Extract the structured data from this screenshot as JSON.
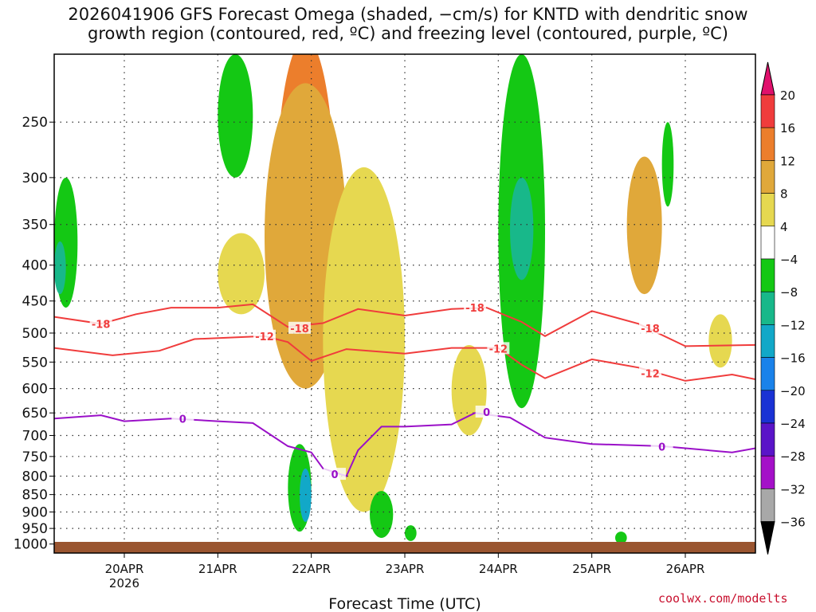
{
  "title_line1": "2026041906 GFS Forecast Omega (shaded, −cm/s) for KNTD with dendritic snow",
  "title_line2": "growth region (contoured, red, ºC) and freezing level (contoured, purple, ºC)",
  "credit": "coolwx.com/modelts",
  "colors": {
    "ground": "#9a5530",
    "isotherm_red": "#f03c3c",
    "freezing_purple": "#9a10c8",
    "grid": "#333333"
  },
  "chart_data": {
    "type": "heatmap",
    "xlabel": "Forecast Time (UTC)",
    "ylabel": "",
    "x_start": "2026-04-19T06Z",
    "x_end": "2026-04-26T18Z",
    "x_ticks": [
      {
        "date": "2026-04-20T00Z",
        "label": "20APR",
        "sublabel": "2026"
      },
      {
        "date": "2026-04-21T00Z",
        "label": "21APR",
        "sublabel": ""
      },
      {
        "date": "2026-04-22T00Z",
        "label": "22APR",
        "sublabel": ""
      },
      {
        "date": "2026-04-23T00Z",
        "label": "23APR",
        "sublabel": ""
      },
      {
        "date": "2026-04-24T00Z",
        "label": "24APR",
        "sublabel": ""
      },
      {
        "date": "2026-04-25T00Z",
        "label": "25APR",
        "sublabel": ""
      },
      {
        "date": "2026-04-26T00Z",
        "label": "26APR",
        "sublabel": ""
      }
    ],
    "y_axis": {
      "scale": "log-pressure",
      "reversed": true,
      "range_hpa": [
        1030,
        200
      ],
      "ticks": [
        250,
        300,
        350,
        400,
        450,
        500,
        550,
        600,
        650,
        700,
        750,
        800,
        850,
        900,
        950,
        1000
      ]
    },
    "grid": true,
    "colorbar": {
      "position": "right",
      "labels": [
        "20",
        "16",
        "12",
        "8",
        "4",
        "−4",
        "−8",
        "−12",
        "−16",
        "−20",
        "−24",
        "−28",
        "−32",
        "−36"
      ],
      "bins": [
        {
          "range": "above 20",
          "color": "#e0106c"
        },
        {
          "range": "16 to 20",
          "color": "#f03c3c"
        },
        {
          "range": "12 to 16",
          "color": "#ec7e2c"
        },
        {
          "range": "8 to 12",
          "color": "#e0a83a"
        },
        {
          "range": "4 to 8",
          "color": "#e6d850"
        },
        {
          "range": "−4 to 4",
          "color": "#ffffff"
        },
        {
          "range": "−8 to −4",
          "color": "#14c814"
        },
        {
          "range": "−12 to −8",
          "color": "#18b88a"
        },
        {
          "range": "−16 to −12",
          "color": "#12a8c8"
        },
        {
          "range": "−20 to −16",
          "color": "#1a82ea"
        },
        {
          "range": "−24 to −20",
          "color": "#1a32d4"
        },
        {
          "range": "−28 to −24",
          "color": "#5a14c8"
        },
        {
          "range": "−32 to −28",
          "color": "#a410c8"
        },
        {
          "range": "−36 to −32",
          "color": "#a8a8a8"
        },
        {
          "range": "below −36",
          "color": "#000000"
        }
      ]
    },
    "series": [
      {
        "name": "-18",
        "points": [
          [
            "2026-04-19T06Z",
            474
          ],
          [
            "2026-04-19T18Z",
            485
          ],
          [
            "2026-04-20T03Z",
            470
          ],
          [
            "2026-04-20T12Z",
            460
          ],
          [
            "2026-04-21T00Z",
            460
          ],
          [
            "2026-04-21T09Z",
            455
          ],
          [
            "2026-04-21T18Z",
            490
          ],
          [
            "2026-04-22T03Z",
            484
          ],
          [
            "2026-04-22T12Z",
            462
          ],
          [
            "2026-04-23T00Z",
            472
          ],
          [
            "2026-04-23T12Z",
            462
          ],
          [
            "2026-04-23T21Z",
            460
          ],
          [
            "2026-04-24T06Z",
            482
          ],
          [
            "2026-04-24T12Z",
            505
          ],
          [
            "2026-04-25T00Z",
            465
          ],
          [
            "2026-04-25T12Z",
            485
          ],
          [
            "2026-04-26T00Z",
            522
          ],
          [
            "2026-04-26T18Z",
            520
          ]
        ],
        "label_at": [
          [
            "2026-04-19T18Z",
            485
          ],
          [
            "2026-04-21T21Z",
            492
          ],
          [
            "2026-04-23T18Z",
            460
          ],
          [
            "2026-04-25T15Z",
            492
          ]
        ]
      },
      {
        "name": "-12",
        "points": [
          [
            "2026-04-19T06Z",
            525
          ],
          [
            "2026-04-19T21Z",
            538
          ],
          [
            "2026-04-20T09Z",
            530
          ],
          [
            "2026-04-20T18Z",
            510
          ],
          [
            "2026-04-21T12Z",
            505
          ],
          [
            "2026-04-21T18Z",
            515
          ],
          [
            "2026-04-22T00Z",
            548
          ],
          [
            "2026-04-22T09Z",
            527
          ],
          [
            "2026-04-23T00Z",
            535
          ],
          [
            "2026-04-23T12Z",
            525
          ],
          [
            "2026-04-24T00Z",
            525
          ],
          [
            "2026-04-24T06Z",
            555
          ],
          [
            "2026-04-24T12Z",
            580
          ],
          [
            "2026-04-25T00Z",
            545
          ],
          [
            "2026-04-25T12Z",
            560
          ],
          [
            "2026-04-26T00Z",
            585
          ],
          [
            "2026-04-26T12Z",
            573
          ],
          [
            "2026-04-26T18Z",
            582
          ]
        ],
        "label_at": [
          [
            "2026-04-21T12Z",
            505
          ],
          [
            "2026-04-24T00Z",
            526
          ],
          [
            "2026-04-25T15Z",
            571
          ]
        ]
      },
      {
        "name": "0",
        "points": [
          [
            "2026-04-19T06Z",
            662
          ],
          [
            "2026-04-19T18Z",
            655
          ],
          [
            "2026-04-20T00Z",
            668
          ],
          [
            "2026-04-20T12Z",
            662
          ],
          [
            "2026-04-21T00Z",
            668
          ],
          [
            "2026-04-21T09Z",
            672
          ],
          [
            "2026-04-21T18Z",
            725
          ],
          [
            "2026-04-22T00Z",
            740
          ],
          [
            "2026-04-22T03Z",
            780
          ],
          [
            "2026-04-22T09Z",
            800
          ],
          [
            "2026-04-22T12Z",
            735
          ],
          [
            "2026-04-22T18Z",
            680
          ],
          [
            "2026-04-23T00Z",
            680
          ],
          [
            "2026-04-23T12Z",
            675
          ],
          [
            "2026-04-23T18Z",
            650
          ],
          [
            "2026-04-24T03Z",
            660
          ],
          [
            "2026-04-24T12Z",
            705
          ],
          [
            "2026-04-25T00Z",
            720
          ],
          [
            "2026-04-25T18Z",
            725
          ],
          [
            "2026-04-26T12Z",
            740
          ],
          [
            "2026-04-26T18Z",
            730
          ]
        ],
        "label_at": [
          [
            "2026-04-20T15Z",
            663
          ],
          [
            "2026-04-22T06Z",
            795
          ],
          [
            "2026-04-23T21Z",
            648
          ],
          [
            "2026-04-25T18Z",
            726
          ]
        ]
      }
    ],
    "omega_features": [
      {
        "t": [
          "2026-04-21T21Z",
          "2026-04-22T00Z"
        ],
        "p": [
          280,
          460
        ],
        "color": "#e0106c"
      },
      {
        "t": [
          "2026-04-21T18Z",
          "2026-04-22T03Z"
        ],
        "p": [
          240,
          520
        ],
        "color": "#f03c3c"
      },
      {
        "t": [
          "2026-04-21T15Z",
          "2026-04-22T06Z"
        ],
        "p": [
          190,
          560
        ],
        "color": "#ec7e2c"
      },
      {
        "t": [
          "2026-04-21T12Z",
          "2026-04-22T09Z"
        ],
        "p": [
          220,
          600
        ],
        "color": "#e0a83a"
      },
      {
        "t": [
          "2026-04-22T09Z",
          "2026-04-22T18Z"
        ],
        "p": [
          380,
          720
        ],
        "color": "#ec7e2c"
      },
      {
        "t": [
          "2026-04-22T06Z",
          "2026-04-22T21Z"
        ],
        "p": [
          330,
          760
        ],
        "color": "#e0a83a"
      },
      {
        "t": [
          "2026-04-22T03Z",
          "2026-04-23T00Z"
        ],
        "p": [
          290,
          900
        ],
        "color": "#e6d850"
      },
      {
        "t": [
          "2026-04-25T12Z",
          "2026-04-25T15Z"
        ],
        "p": [
          300,
          410
        ],
        "color": "#ec7e2c"
      },
      {
        "t": [
          "2026-04-25T09Z",
          "2026-04-25T18Z"
        ],
        "p": [
          280,
          440
        ],
        "color": "#e0a83a"
      },
      {
        "t": [
          "2026-04-21T00Z",
          "2026-04-21T12Z"
        ],
        "p": [
          360,
          470
        ],
        "color": "#e6d850"
      },
      {
        "t": [
          "2026-04-23T12Z",
          "2026-04-23T21Z"
        ],
        "p": [
          520,
          700
        ],
        "color": "#e6d850"
      },
      {
        "t": [
          "2026-04-26T06Z",
          "2026-04-26T12Z"
        ],
        "p": [
          470,
          560
        ],
        "color": "#e6d850"
      },
      {
        "t": [
          "2026-04-21T18Z",
          "2026-04-22T00Z"
        ],
        "p": [
          720,
          960
        ],
        "color": "#14c814"
      },
      {
        "t": [
          "2026-04-21T21Z",
          "2026-04-22T00Z"
        ],
        "p": [
          780,
          930
        ],
        "color": "#12a8c8"
      },
      {
        "t": [
          "2026-04-19T06Z",
          "2026-04-19T12Z"
        ],
        "p": [
          300,
          460
        ],
        "color": "#14c814"
      },
      {
        "t": [
          "2026-04-19T06Z",
          "2026-04-19T09Z"
        ],
        "p": [
          370,
          440
        ],
        "color": "#18b88a"
      },
      {
        "t": [
          "2026-04-24T00Z",
          "2026-04-24T12Z"
        ],
        "p": [
          200,
          640
        ],
        "color": "#14c814"
      },
      {
        "t": [
          "2026-04-24T03Z",
          "2026-04-24T09Z"
        ],
        "p": [
          300,
          420
        ],
        "color": "#18b88a"
      },
      {
        "t": [
          "2026-04-21T00Z",
          "2026-04-21T09Z"
        ],
        "p": [
          200,
          300
        ],
        "color": "#14c814"
      },
      {
        "t": [
          "2026-04-22T15Z",
          "2026-04-22T21Z"
        ],
        "p": [
          840,
          980
        ],
        "color": "#14c814"
      },
      {
        "t": [
          "2026-04-23T00Z",
          "2026-04-23T03Z"
        ],
        "p": [
          940,
          990
        ],
        "color": "#14c814"
      },
      {
        "t": [
          "2026-04-25T18Z",
          "2026-04-25T21Z"
        ],
        "p": [
          250,
          330
        ],
        "color": "#14c814"
      },
      {
        "t": [
          "2026-04-25T06Z",
          "2026-04-25T09Z"
        ],
        "p": [
          960,
          1000
        ],
        "color": "#14c814"
      }
    ]
  }
}
